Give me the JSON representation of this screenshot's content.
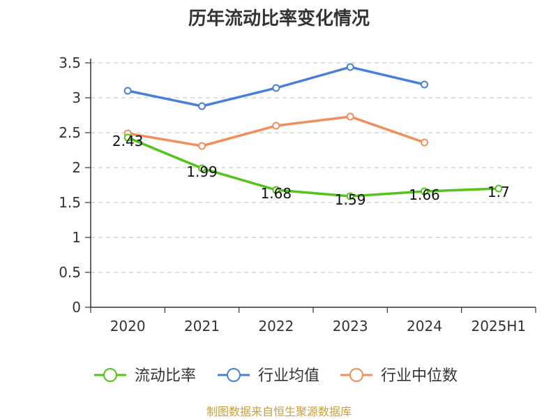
{
  "chart_data": {
    "type": "line",
    "title": "历年流动比率变化情况",
    "categories": [
      "2020",
      "2021",
      "2022",
      "2023",
      "2024",
      "2025H1"
    ],
    "yticks": [
      "0",
      "0.5",
      "1",
      "1.5",
      "2",
      "2.5",
      "3",
      "3.5"
    ],
    "ylim": [
      0,
      3.5
    ],
    "grid": true,
    "legend_position": "bottom",
    "series": [
      {
        "name": "流动比率",
        "color": "#52c41a",
        "values": [
          2.43,
          1.99,
          1.68,
          1.59,
          1.66,
          1.7
        ],
        "labels": [
          "2.43",
          "1.99",
          "1.68",
          "1.59",
          "1.66",
          "1.7"
        ]
      },
      {
        "name": "行业均值",
        "color": "#4a7fd8",
        "values": [
          3.1,
          2.88,
          3.14,
          3.44,
          3.19,
          null
        ]
      },
      {
        "name": "行业中位数",
        "color": "#f28e5c",
        "values": [
          2.49,
          2.31,
          2.6,
          2.73,
          2.36,
          null
        ]
      }
    ]
  },
  "footer": {
    "source": "制图数据来自恒生聚源数据库"
  }
}
